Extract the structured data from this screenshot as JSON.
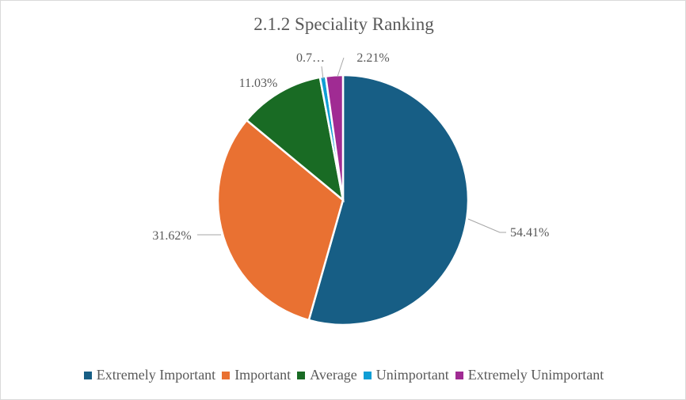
{
  "chart_data": {
    "type": "pie",
    "title": "2.1.2 Speciality Ranking",
    "categories": [
      "Extremely Important",
      "Important",
      "Average",
      "Unimportant",
      "Extremely Unimportant"
    ],
    "values": [
      54.41,
      31.62,
      11.03,
      0.74,
      2.21
    ],
    "data_labels": [
      "54.41%",
      "31.62%",
      "11.03%",
      "0.7…",
      "2.21%"
    ],
    "colors": [
      "#175e85",
      "#e97132",
      "#196b24",
      "#0f9ed5",
      "#a02b93"
    ],
    "legend_position": "bottom"
  }
}
